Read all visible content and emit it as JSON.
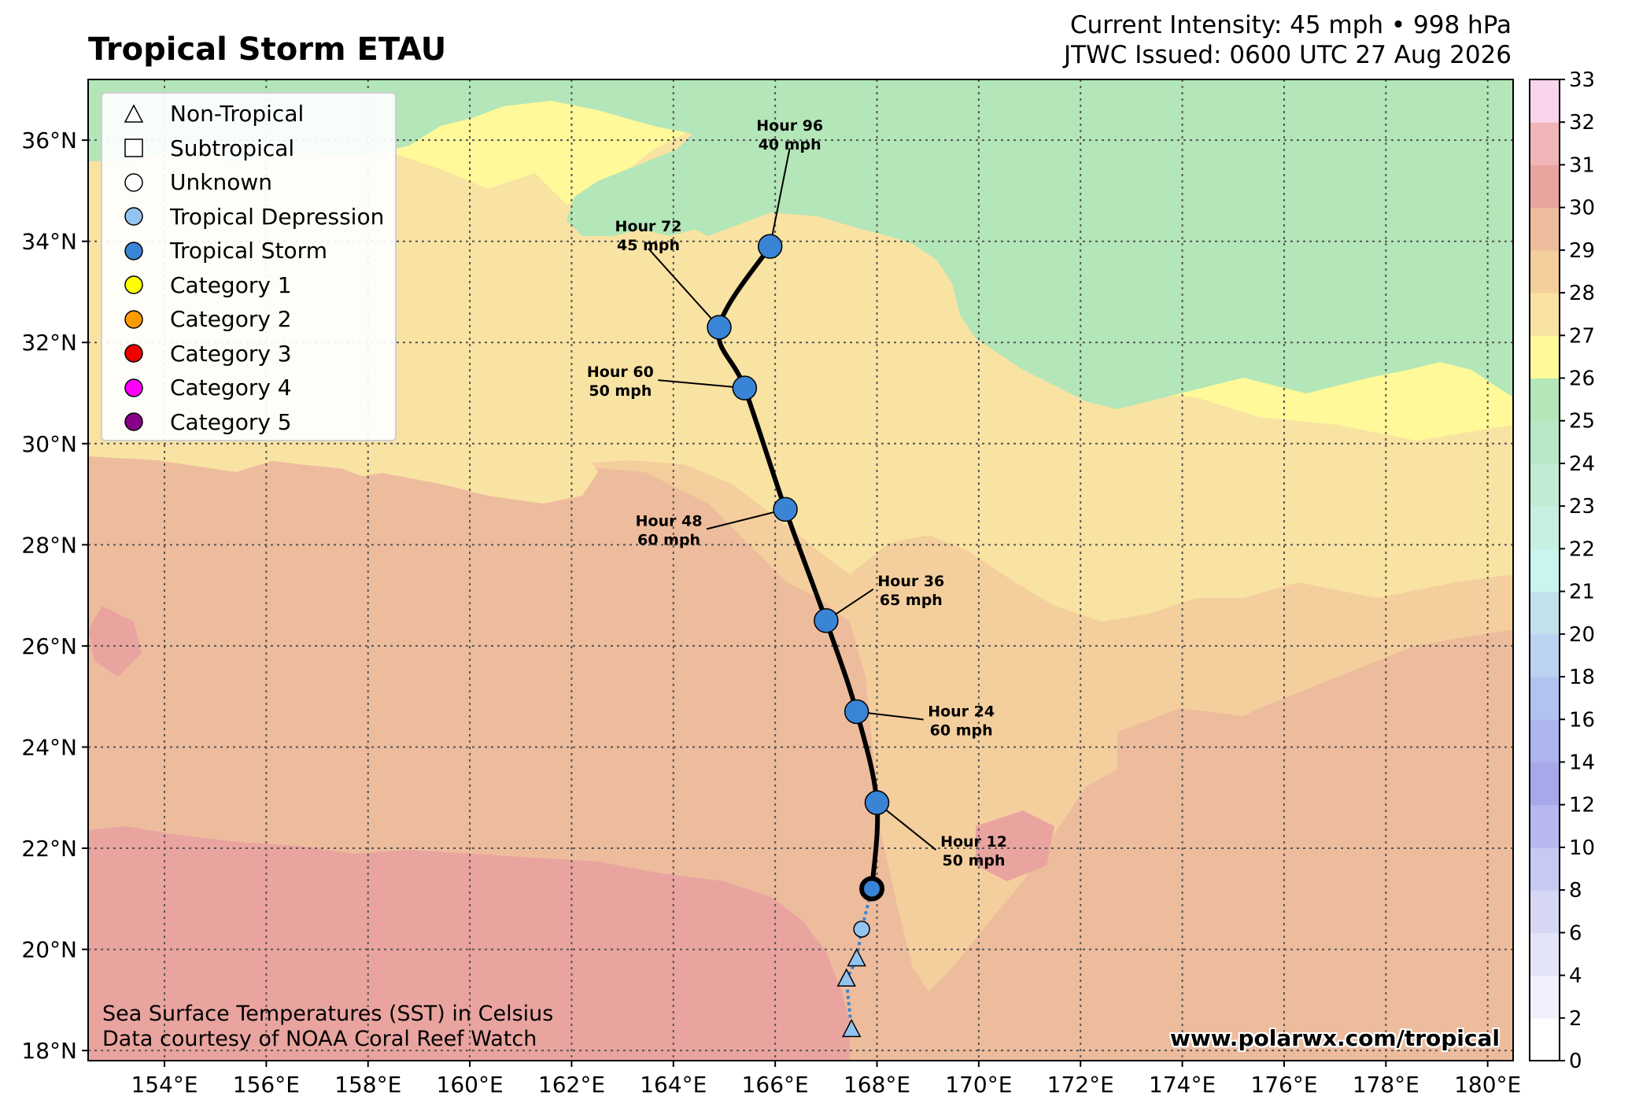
{
  "title": "Tropical Storm ETAU",
  "header": {
    "current_intensity": "Current Intensity: 45 mph • 998 hPa",
    "issued": "JTWC Issued: 0600 UTC 27 Aug 2026"
  },
  "map": {
    "lon_range": [
      152.5,
      180.5
    ],
    "lat_range": [
      17.8,
      37.2
    ],
    "lon_ticks": [
      "154°E",
      "156°E",
      "158°E",
      "160°E",
      "162°E",
      "164°E",
      "166°E",
      "168°E",
      "170°E",
      "172°E",
      "174°E",
      "176°E",
      "178°E",
      "180°E"
    ],
    "lat_ticks": [
      "18°N",
      "20°N",
      "22°N",
      "24°N",
      "26°N",
      "28°N",
      "30°N",
      "32°N",
      "34°N",
      "36°N"
    ],
    "gridlines": true,
    "colors": {
      "sst_25_26": "#b3e6b8",
      "sst_26_27": "#fff99a",
      "sst_27_28": "#f9e3a2",
      "sst_28_29": "#f4cf9d",
      "sst_29_30": "#edbc9d",
      "sst_30_31": "#e9a4a0",
      "track_line": "#000000",
      "tropical_storm": "#3a84d6",
      "tropical_depression": "#93c3ef"
    }
  },
  "legend": [
    {
      "label": "Non-Tropical",
      "symbol": "triangle",
      "color": "#ffffff"
    },
    {
      "label": "Subtropical",
      "symbol": "square",
      "color": "#ffffff"
    },
    {
      "label": "Unknown",
      "symbol": "circle",
      "color": "#ffffff"
    },
    {
      "label": "Tropical Depression",
      "symbol": "circle",
      "color": "#93c3ef"
    },
    {
      "label": "Tropical Storm",
      "symbol": "circle",
      "color": "#3a84d6"
    },
    {
      "label": "Category 1",
      "symbol": "circle",
      "color": "#ffff00"
    },
    {
      "label": "Category 2",
      "symbol": "circle",
      "color": "#ff9a00"
    },
    {
      "label": "Category 3",
      "symbol": "circle",
      "color": "#ee0000"
    },
    {
      "label": "Category 4",
      "symbol": "circle",
      "color": "#ff00ff"
    },
    {
      "label": "Category 5",
      "symbol": "circle",
      "color": "#880088"
    }
  ],
  "track": {
    "history": [
      {
        "lat": 18.4,
        "lon": 167.5,
        "type": "Non-Tropical"
      },
      {
        "lat": 19.4,
        "lon": 167.4,
        "type": "Non-Tropical"
      },
      {
        "lat": 19.8,
        "lon": 167.6,
        "type": "Non-Tropical"
      },
      {
        "lat": 20.4,
        "lon": 167.7,
        "type": "Tropical Depression"
      }
    ],
    "current": {
      "lat": 21.2,
      "lon": 167.9,
      "type": "Tropical Storm"
    },
    "forecast": [
      {
        "hour": "Hour 12",
        "wind": "50 mph",
        "lat": 22.9,
        "lon": 168.0,
        "type": "Tropical Storm"
      },
      {
        "hour": "Hour 24",
        "wind": "60 mph",
        "lat": 24.7,
        "lon": 167.6,
        "type": "Tropical Storm"
      },
      {
        "hour": "Hour 36",
        "wind": "65 mph",
        "lat": 26.5,
        "lon": 167.0,
        "type": "Tropical Storm"
      },
      {
        "hour": "Hour 48",
        "wind": "60 mph",
        "lat": 28.7,
        "lon": 166.2,
        "type": "Tropical Storm"
      },
      {
        "hour": "Hour 60",
        "wind": "50 mph",
        "lat": 31.1,
        "lon": 165.4,
        "type": "Tropical Storm"
      },
      {
        "hour": "Hour 72",
        "wind": "45 mph",
        "lat": 32.3,
        "lon": 164.9,
        "type": "Tropical Storm"
      },
      {
        "hour": "Hour 96",
        "wind": "40 mph",
        "lat": 33.9,
        "lon": 165.9,
        "type": "Tropical Storm"
      }
    ]
  },
  "colorbar": {
    "ticks": [
      "0",
      "2",
      "4",
      "6",
      "8",
      "10",
      "12",
      "14",
      "16",
      "18",
      "20",
      "21",
      "22",
      "23",
      "24",
      "25",
      "26",
      "27",
      "28",
      "29",
      "30",
      "31",
      "32",
      "33"
    ],
    "colors": [
      "#ffffff",
      "#f0f0fc",
      "#e4e4f8",
      "#d6d7f5",
      "#c7c9f2",
      "#b6b8ef",
      "#a6a8ea",
      "#adb5ee",
      "#b3c3f0",
      "#bbd2f0",
      "#c2e1ec",
      "#c9f4ef",
      "#c6f0e2",
      "#c0ecd5",
      "#b9e8c8",
      "#b3e6b8",
      "#fff99a",
      "#f9e3a2",
      "#f4cf9d",
      "#edbc9d",
      "#e9a4a0",
      "#efb5b8",
      "#f9d4ee"
    ]
  },
  "footer": {
    "credit_line1": "Sea Surface Temperatures (SST) in Celsius",
    "credit_line2": "Data courtesy of NOAA Coral Reef Watch",
    "website": "www.polarwx.com/tropical"
  }
}
